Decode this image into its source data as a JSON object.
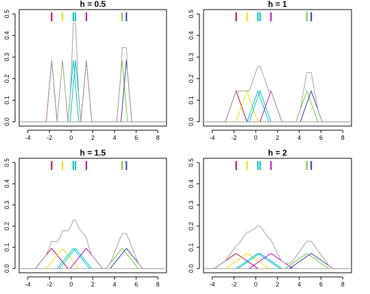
{
  "chart_data": [
    {
      "type": "line",
      "title": "h = 0.5",
      "h": 0.5,
      "xlim": [
        -4.8,
        8.8
      ],
      "ylim": [
        -0.02,
        0.52
      ],
      "xticks": [
        -4,
        -2,
        0,
        2,
        4,
        6,
        8
      ],
      "yticks": [
        0.0,
        0.1,
        0.2,
        0.3,
        0.4,
        0.5
      ],
      "kernel": "triangular",
      "grid": false,
      "rug": [
        {
          "x": -1.8,
          "color": "#b5003d"
        },
        {
          "x": -0.8,
          "color": "#e6e000"
        },
        {
          "x": 0.2,
          "color": "#00c0c0"
        },
        {
          "x": 0.4,
          "color": "#00c0c0"
        },
        {
          "x": 1.4,
          "color": "#c000c0"
        },
        {
          "x": 4.7,
          "color": "#66cc33"
        },
        {
          "x": 5.1,
          "color": "#3333aa"
        }
      ],
      "sum_color": "#a0a0a0"
    },
    {
      "type": "line",
      "title": "h = 1",
      "h": 1,
      "xlim": [
        -4.8,
        8.8
      ],
      "ylim": [
        -0.02,
        0.52
      ],
      "xticks": [
        -4,
        -2,
        0,
        2,
        4,
        6,
        8
      ],
      "yticks": [
        0.0,
        0.1,
        0.2,
        0.3,
        0.4,
        0.5
      ],
      "kernel": "triangular",
      "grid": false,
      "rug": [
        {
          "x": -1.8,
          "color": "#b5003d"
        },
        {
          "x": -0.8,
          "color": "#e6e000"
        },
        {
          "x": 0.2,
          "color": "#00c0c0"
        },
        {
          "x": 0.4,
          "color": "#00c0c0"
        },
        {
          "x": 1.4,
          "color": "#c000c0"
        },
        {
          "x": 4.7,
          "color": "#66cc33"
        },
        {
          "x": 5.1,
          "color": "#3333aa"
        }
      ],
      "sum_color": "#a0a0a0"
    },
    {
      "type": "line",
      "title": "h = 1.5",
      "h": 1.5,
      "xlim": [
        -4.8,
        8.8
      ],
      "ylim": [
        -0.02,
        0.52
      ],
      "xticks": [
        -4,
        -2,
        0,
        2,
        4,
        6,
        8
      ],
      "yticks": [
        0.0,
        0.1,
        0.2,
        0.3,
        0.4,
        0.5
      ],
      "kernel": "triangular",
      "grid": false,
      "rug": [
        {
          "x": -1.8,
          "color": "#b5003d"
        },
        {
          "x": -0.8,
          "color": "#e6e000"
        },
        {
          "x": 0.2,
          "color": "#00c0c0"
        },
        {
          "x": 0.4,
          "color": "#00c0c0"
        },
        {
          "x": 1.4,
          "color": "#c000c0"
        },
        {
          "x": 4.7,
          "color": "#66cc33"
        },
        {
          "x": 5.1,
          "color": "#3333aa"
        }
      ],
      "sum_color": "#a0a0a0"
    },
    {
      "type": "line",
      "title": "h = 2",
      "h": 2,
      "xlim": [
        -4.8,
        8.8
      ],
      "ylim": [
        -0.02,
        0.52
      ],
      "xticks": [
        -4,
        -2,
        0,
        2,
        4,
        6,
        8
      ],
      "yticks": [
        0.0,
        0.1,
        0.2,
        0.3,
        0.4,
        0.5
      ],
      "kernel": "triangular",
      "grid": false,
      "rug": [
        {
          "x": -1.8,
          "color": "#b5003d"
        },
        {
          "x": -0.8,
          "color": "#e6e000"
        },
        {
          "x": 0.2,
          "color": "#00c0c0"
        },
        {
          "x": 0.4,
          "color": "#00c0c0"
        },
        {
          "x": 1.4,
          "color": "#c000c0"
        },
        {
          "x": 4.7,
          "color": "#66cc33"
        },
        {
          "x": 5.1,
          "color": "#3333aa"
        }
      ],
      "sum_color": "#a0a0a0"
    }
  ]
}
